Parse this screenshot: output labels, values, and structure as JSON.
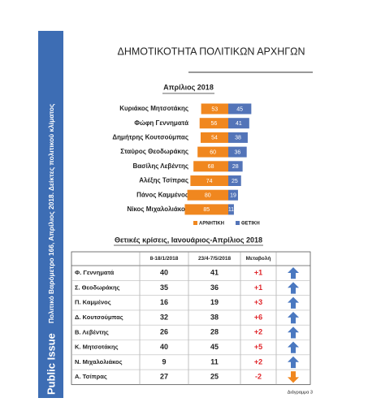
{
  "sidebar": {
    "brand": "Public Issue",
    "caption": "Πολιτικό Βαρόμετρο 166, Απρίλιος 2018. Δείκτες πολιτικού κλίματος"
  },
  "title": "ΔΗΜΟΤΙΚΟΤΗΤΑ ΠΟΛΙΤΙΚΩΝ ΑΡΧΗΓΩΝ",
  "chart_data": {
    "type": "diverging-bar",
    "title": "Απρίλιος 2018",
    "categories": [
      "Κυριάκος Μητσοτάκης",
      "Φώφη Γεννηματά",
      "Δημήτρης Κουτσούμπας",
      "Σταύρος Θεοδωράκης",
      "Βασίλης Λεβέντης",
      "Αλέξης Τσίπρας",
      "Πάνος Καμμένος",
      "Νίκος Μιχαλολιάκος"
    ],
    "series": [
      {
        "name": "ΑΡΝΗΤΙΚΗ",
        "color": "#f0871f",
        "values": [
          53,
          56,
          54,
          60,
          68,
          74,
          80,
          85
        ]
      },
      {
        "name": "ΘΕΤΙΚΗ",
        "color": "#5374b8",
        "values": [
          45,
          41,
          38,
          36,
          28,
          25,
          19,
          11
        ]
      }
    ]
  },
  "table": {
    "title": "Θετικές κρίσεις, Ιανουάριος-Απρίλιος 2018",
    "header": [
      "8-18/1/2018",
      "23/4-7/5/2018",
      "Μεταβολή"
    ],
    "rows": [
      [
        "Φ. Γεννηματά",
        40,
        41,
        "+1"
      ],
      [
        "Σ. Θεοδωράκης",
        35,
        36,
        "+1"
      ],
      [
        "Π. Καμμένος",
        16,
        19,
        "+3"
      ],
      [
        "Δ. Κουτσούμπας",
        32,
        38,
        "+6"
      ],
      [
        "Β. Λεβέντης",
        26,
        28,
        "+2"
      ],
      [
        "Κ. Μητσοτάκης",
        40,
        45,
        "+5"
      ],
      [
        "Ν. Μιχαλολιάκος",
        9,
        11,
        "+2"
      ],
      [
        "Α. Τσίπρας",
        27,
        25,
        "-2"
      ]
    ]
  },
  "footer": "Διάγραμμα 3"
}
